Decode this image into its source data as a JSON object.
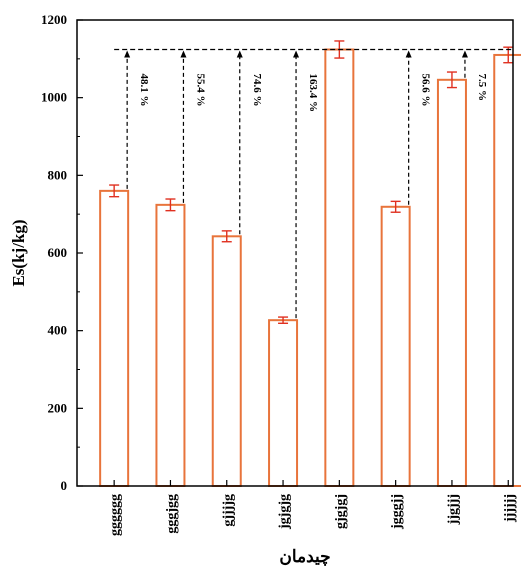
{
  "chart_data": {
    "type": "bar",
    "title": "",
    "xlabel": "چیدمان",
    "ylabel": "Es(kj/kg)",
    "ylim": [
      0,
      1200
    ],
    "yticks": [
      0,
      200,
      400,
      600,
      800,
      1000,
      1200
    ],
    "grid": false,
    "categories": [
      "gggggg",
      "gggjgg",
      "gjjjjg",
      "jgjgjg",
      "gjgjgj",
      "jgggjj",
      "jjgjjj",
      "jjjjjj"
    ],
    "values": [
      760,
      724,
      643,
      427,
      1124,
      719,
      1046,
      1110
    ],
    "errors": [
      15,
      15,
      14,
      8,
      22,
      14,
      20,
      20
    ],
    "reference_value": 1124,
    "annotations": [
      {
        "category": "gggggg",
        "label": "48.1 %"
      },
      {
        "category": "gggjgg",
        "label": "55.4 %"
      },
      {
        "category": "gjjjjg",
        "label": "74.6 %"
      },
      {
        "category": "jgjgjg",
        "label": "163.4 %"
      },
      {
        "category": "jgggjj",
        "label": "56.6 %"
      },
      {
        "category": "jjgjjj",
        "label": "7.5 %"
      }
    ],
    "colors": {
      "bar_edge": "#e8743b",
      "bar_fill": "#ffffff",
      "error_bar": "#e03020",
      "axis": "#000000"
    }
  }
}
